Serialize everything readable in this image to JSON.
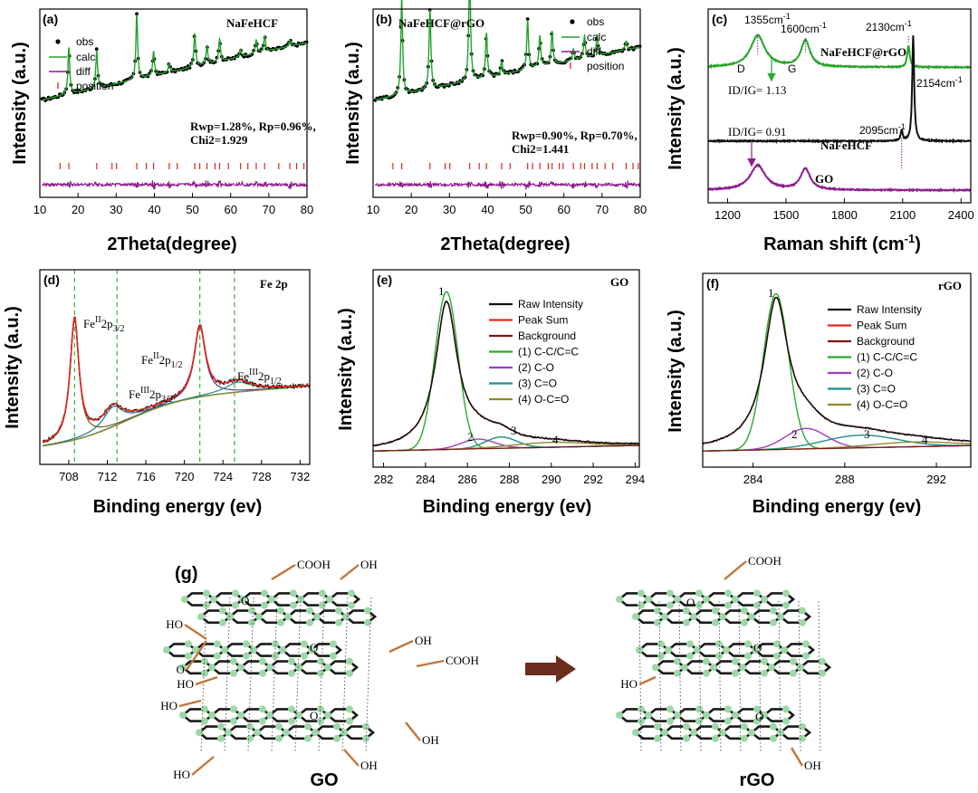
{
  "colors": {
    "obs": "#000000",
    "calc": "#22a22a",
    "diff": "#8b1a8b",
    "position": "#e2231a",
    "raw": "#111111",
    "peak_sum": "#e3281e",
    "background": "#7a1414",
    "c1": "#2ea82e",
    "c2": "#a03cc0",
    "c3": "#1f8c8c",
    "c4": "#8c8c2a",
    "raman_gr": "#26a326",
    "raman_nf": "#111111",
    "raman_go": "#8b1f8b",
    "dash": "#2ea82e",
    "bond": "#1a1a1a",
    "atom": "#9ed8a8",
    "func": "#c0763a",
    "arrow": "#6b2d1d"
  },
  "chart_data": [
    {
      "id": "a",
      "panel_label": "(a)",
      "type": "scatter",
      "title": "NaFeHCF",
      "xlabel": "2Theta(degree)",
      "ylabel": "Intensity (a.u.)",
      "xlim": [
        10,
        80
      ],
      "xticks": [
        "10",
        "20",
        "30",
        "40",
        "50",
        "60",
        "70",
        "80"
      ],
      "legend": [
        "obs",
        "calc",
        "diff",
        "position"
      ],
      "annotation": [
        "Rwp=1.28%, Rp=0.96%,",
        "Chi2=1.929"
      ],
      "background_slope": [
        0.3,
        0.82
      ],
      "peaks": [
        [
          17.6,
          0.42
        ],
        [
          24.9,
          0.34
        ],
        [
          35.4,
          0.58
        ],
        [
          39.8,
          0.22
        ],
        [
          43.9,
          0.08
        ],
        [
          50.6,
          0.3
        ],
        [
          53.8,
          0.16
        ],
        [
          57.1,
          0.2
        ],
        [
          62.6,
          0.07
        ],
        [
          66.7,
          0.12
        ],
        [
          68.9,
          0.14
        ],
        [
          75.5,
          0.06
        ]
      ],
      "positions": [
        15.3,
        17.6,
        24.9,
        28.9,
        30.1,
        35.4,
        37.9,
        39.8,
        43.9,
        46.0,
        50.6,
        51.9,
        53.8,
        55.9,
        57.1,
        59.4,
        62.6,
        64.5,
        66.7,
        68.9,
        72.6,
        75.5,
        77.3,
        79.2
      ]
    },
    {
      "id": "b",
      "panel_label": "(b)",
      "type": "scatter",
      "title": "NaFeHCF@rGO",
      "xlabel": "2Theta(degree)",
      "ylabel": "Intensity (a.u.)",
      "xlim": [
        10,
        80
      ],
      "xticks": [
        "10",
        "20",
        "30",
        "40",
        "50",
        "60",
        "70",
        "80"
      ],
      "legend": [
        "obs",
        "calc",
        "diff",
        "position"
      ],
      "annotation": [
        "Rwp=0.90%, Rp=0.70%,",
        "Chi2=1.441"
      ],
      "background_slope": [
        0.3,
        0.78
      ],
      "peaks": [
        [
          17.5,
          0.86
        ],
        [
          24.9,
          0.72
        ],
        [
          35.3,
          1.0
        ],
        [
          39.7,
          0.4
        ],
        [
          43.7,
          0.12
        ],
        [
          50.5,
          0.44
        ],
        [
          53.7,
          0.28
        ],
        [
          56.9,
          0.3
        ],
        [
          62.5,
          0.1
        ],
        [
          65.4,
          0.2
        ],
        [
          68.7,
          0.18
        ],
        [
          76.3,
          0.08
        ]
      ],
      "positions": [
        15.2,
        17.5,
        24.9,
        28.9,
        30.1,
        35.3,
        37.8,
        39.7,
        43.7,
        45.9,
        50.5,
        51.8,
        53.7,
        55.9,
        56.9,
        58.8,
        59.8,
        62.5,
        64.4,
        65.4,
        67.4,
        68.7,
        70.8,
        72.8,
        76.3,
        78.1,
        79.5
      ]
    },
    {
      "id": "c",
      "panel_label": "(c)",
      "type": "line",
      "xlabel": "Raman shift (cm",
      "xlabel_sup": "-1",
      "xlabel_end": ")",
      "ylabel": "Intensity (a.u.)",
      "xlim": [
        1100,
        2450
      ],
      "xticks": [
        "1200",
        "1500",
        "1800",
        "2100",
        "2400"
      ],
      "series": [
        {
          "name": "NaFeHCF@rGO",
          "offset": 0.72,
          "peaks": [
            [
              1355,
              0.18,
              45
            ],
            [
              1600,
              0.15,
              28
            ],
            [
              2130,
              0.12,
              8
            ]
          ]
        },
        {
          "name": "NaFeHCF",
          "offset": 0.3,
          "peaks": [
            [
              2095,
              0.06,
              6
            ],
            [
              2154,
              0.6,
              6
            ]
          ]
        },
        {
          "name": "GO",
          "offset": 0.02,
          "peaks": [
            [
              1355,
              0.14,
              48
            ],
            [
              1600,
              0.12,
              30
            ]
          ]
        }
      ],
      "annotations": [
        {
          "text": "1355cm",
          "sup": "-1"
        },
        {
          "text": "1600cm",
          "sup": "-1"
        },
        {
          "text": "2130cm",
          "sup": "-1"
        },
        {
          "text": "2154cm",
          "sup": "-1"
        },
        {
          "text": "2095cm",
          "sup": "-1"
        },
        {
          "text": "D"
        },
        {
          "text": "G"
        },
        {
          "text": "ID/IG= 1.13"
        },
        {
          "text": "ID/IG= 0.91"
        }
      ]
    },
    {
      "id": "d",
      "panel_label": "(d)",
      "type": "line",
      "title": "Fe 2p",
      "xlabel": "Binding energy (ev)",
      "ylabel": "Intensity (a.u.)",
      "xlim": [
        705,
        733
      ],
      "xticks": [
        "708",
        "712",
        "716",
        "720",
        "724",
        "728",
        "732"
      ],
      "dashed_lines": [
        708.6,
        713.0,
        721.6,
        725.2
      ],
      "labels": [
        {
          "base": "Fe",
          "ox": "II",
          "orb": "2p",
          "sub": "3/2"
        },
        {
          "base": "Fe",
          "ox": "III",
          "orb": "2p",
          "sub": "3/2"
        },
        {
          "base": "Fe",
          "ox": "II",
          "orb": "2p",
          "sub": "1/2"
        },
        {
          "base": "Fe",
          "ox": "III",
          "orb": "2p",
          "sub": "1/2"
        }
      ]
    },
    {
      "id": "e",
      "panel_label": "(e)",
      "type": "line",
      "title": "GO",
      "xlabel": "Binding energy (ev)",
      "ylabel": "Intensity (a.u.)",
      "xlim": [
        281.5,
        294.2
      ],
      "xticks": [
        "282",
        "284",
        "286",
        "288",
        "290",
        "292",
        "294"
      ],
      "legend": [
        "Raw Intensity",
        "Peak Sum",
        "Background",
        "(1) C-C/C=C",
        "(2) C-O",
        "(3) C=O",
        "(4) O-C=O"
      ],
      "components": [
        [
          285.0,
          0.96,
          0.55
        ],
        [
          286.5,
          0.06,
          0.8
        ],
        [
          287.6,
          0.07,
          0.75
        ],
        [
          290.0,
          0.03,
          1.8
        ]
      ],
      "peak_numbers": [
        "1",
        "2",
        "3",
        "4"
      ]
    },
    {
      "id": "f",
      "panel_label": "(f)",
      "type": "line",
      "title": "rGO",
      "xlabel": "Binding energy (ev)",
      "ylabel": "Intensity (a.u.)",
      "xlim": [
        281.8,
        293.5
      ],
      "xticks": [
        "284",
        "288",
        "292"
      ],
      "legend": [
        "Raw Intensity",
        "Peak Sum",
        "Background",
        "(1) C-C/C=C",
        "(2) C-O",
        "(3) C=O",
        "(4) O-C=O"
      ],
      "components": [
        [
          285.0,
          0.97,
          0.55
        ],
        [
          286.3,
          0.13,
          0.9
        ],
        [
          288.7,
          0.08,
          1.6
        ],
        [
          291.0,
          0.03,
          1.8
        ]
      ],
      "peak_numbers": [
        "1",
        "2",
        "3",
        "4"
      ]
    }
  ],
  "scheme": {
    "panel_label": "(g)",
    "go_label": "GO",
    "rgo_label": "rGO",
    "groups": {
      "cooh": "COOH",
      "oh": "OH",
      "ho": "HO",
      "o": "O"
    }
  }
}
